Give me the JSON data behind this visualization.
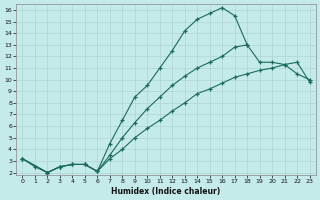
{
  "xlabel": "Humidex (Indice chaleur)",
  "bg_color": "#c5eaea",
  "line_color": "#1a6b5a",
  "grid_color": "#afd4d4",
  "xlim": [
    -0.5,
    23.5
  ],
  "ylim": [
    1.8,
    16.5
  ],
  "xticks": [
    0,
    1,
    2,
    3,
    4,
    5,
    6,
    7,
    8,
    9,
    10,
    11,
    12,
    13,
    14,
    15,
    16,
    17,
    18,
    19,
    20,
    21,
    22,
    23
  ],
  "yticks": [
    2,
    3,
    4,
    5,
    6,
    7,
    8,
    9,
    10,
    11,
    12,
    13,
    14,
    15,
    16
  ],
  "curve1_x": [
    0,
    1,
    2,
    3,
    4,
    5,
    6,
    7,
    8,
    9,
    10,
    11,
    12,
    13,
    14,
    15,
    16,
    17,
    18
  ],
  "curve1_y": [
    3.2,
    2.5,
    2.0,
    2.5,
    2.7,
    2.7,
    2.1,
    4.5,
    6.5,
    8.5,
    9.5,
    11.0,
    12.5,
    14.2,
    15.2,
    15.7,
    16.2,
    15.5,
    13.0
  ],
  "curve2_x": [
    0,
    2,
    3,
    4,
    5,
    6,
    7,
    8,
    9,
    10,
    11,
    12,
    13,
    14,
    15,
    16,
    17,
    18,
    19,
    20,
    21,
    22,
    23
  ],
  "curve2_y": [
    3.2,
    2.0,
    2.5,
    2.7,
    2.7,
    2.1,
    3.5,
    5.0,
    6.3,
    7.5,
    8.5,
    9.5,
    10.3,
    11.0,
    11.5,
    12.0,
    12.8,
    13.0,
    11.5,
    11.5,
    11.3,
    10.5,
    10.0
  ],
  "curve3_x": [
    0,
    2,
    3,
    4,
    5,
    6,
    7,
    8,
    9,
    10,
    11,
    12,
    13,
    14,
    15,
    16,
    17,
    18,
    19,
    20,
    21,
    22,
    23
  ],
  "curve3_y": [
    3.2,
    2.0,
    2.5,
    2.7,
    2.7,
    2.1,
    3.2,
    4.0,
    5.0,
    5.8,
    6.5,
    7.3,
    8.0,
    8.8,
    9.2,
    9.7,
    10.2,
    10.5,
    10.8,
    11.0,
    11.3,
    11.5,
    9.8
  ]
}
